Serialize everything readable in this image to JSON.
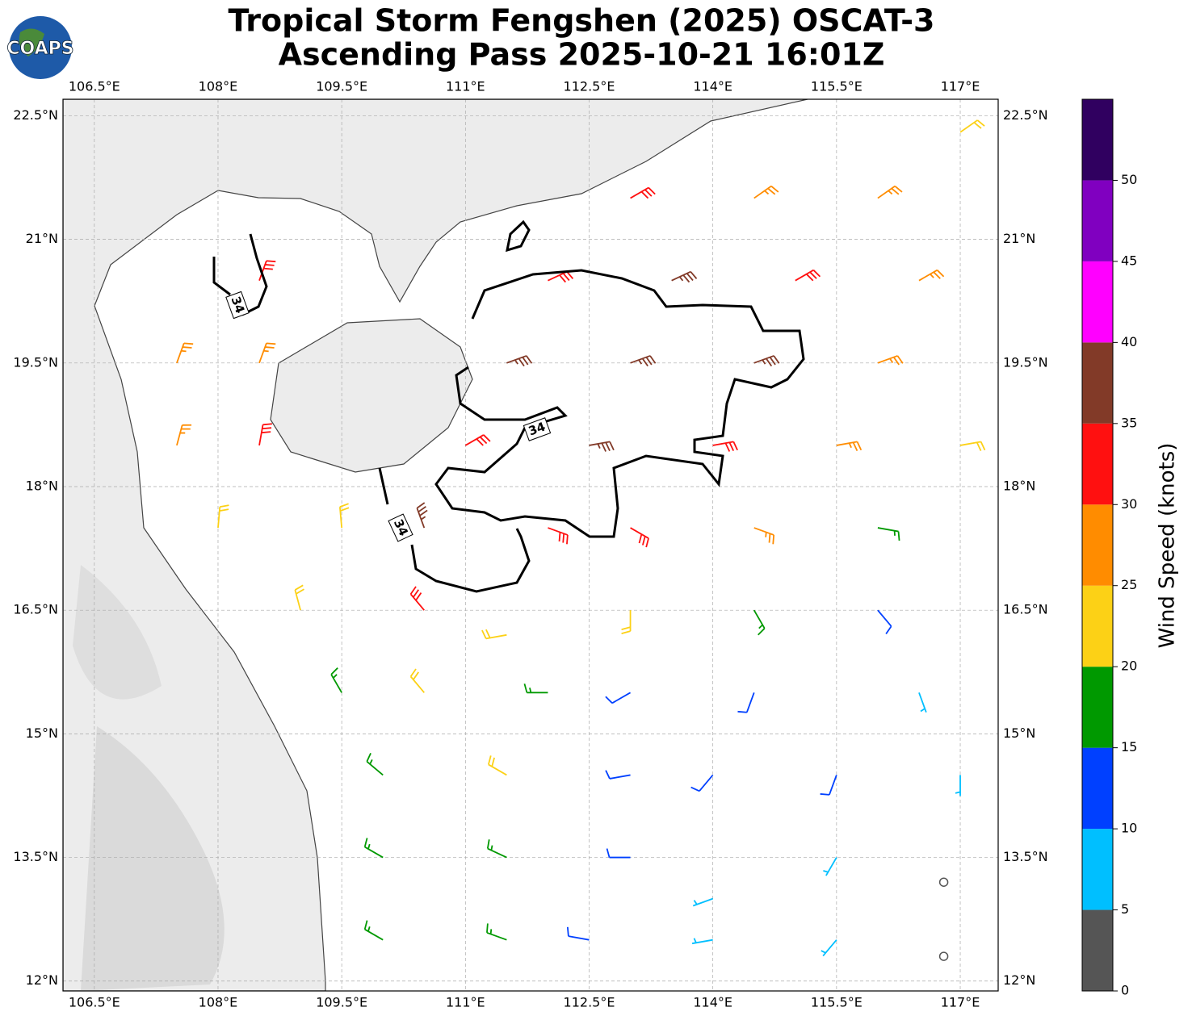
{
  "chart_data": {
    "type": "wind-barb-map",
    "logo": "COAPS",
    "title": "Tropical Storm Fengshen (2025) OSCAT-3",
    "subtitle": "Ascending Pass 2025-10-21 16:01Z",
    "xlim": [
      106.12,
      117.46
    ],
    "ylim": [
      11.88,
      22.7
    ],
    "xticks": [
      {
        "value": 106.5,
        "label": "106.5°E"
      },
      {
        "value": 108,
        "label": "108°E"
      },
      {
        "value": 109.5,
        "label": "109.5°E"
      },
      {
        "value": 111,
        "label": "111°E"
      },
      {
        "value": 112.5,
        "label": "112.5°E"
      },
      {
        "value": 114,
        "label": "114°E"
      },
      {
        "value": 115.5,
        "label": "115.5°E"
      },
      {
        "value": 117,
        "label": "117°E"
      }
    ],
    "yticks": [
      {
        "value": 12,
        "label": "12°N"
      },
      {
        "value": 13.5,
        "label": "13.5°N"
      },
      {
        "value": 15,
        "label": "15°N"
      },
      {
        "value": 16.5,
        "label": "16.5°N"
      },
      {
        "value": 18,
        "label": "18°N"
      },
      {
        "value": 19.5,
        "label": "19.5°N"
      },
      {
        "value": 21,
        "label": "21°N"
      },
      {
        "value": 22.5,
        "label": "22.5°N"
      }
    ],
    "grid": true,
    "contour_label": "34",
    "colorbar": {
      "label": "Wind Speed (knots)",
      "bounds": [
        0,
        5,
        10,
        15,
        20,
        25,
        30,
        35,
        40,
        45,
        50,
        55
      ],
      "colors": [
        "#555555",
        "#00bfff",
        "#0040ff",
        "#009900",
        "#fcd116",
        "#ff8c00",
        "#ff1010",
        "#823a28",
        "#ff00ff",
        "#8000c0",
        "#300060"
      ],
      "ticks": [
        0,
        5,
        10,
        15,
        20,
        25,
        30,
        35,
        40,
        45,
        50
      ]
    },
    "barbs": [
      {
        "lon": 113,
        "lat": 21.5,
        "speed": 32,
        "dir": 60
      },
      {
        "lon": 114.5,
        "lat": 21.5,
        "speed": 28,
        "dir": 55
      },
      {
        "lon": 116,
        "lat": 21.5,
        "speed": 27,
        "dir": 55
      },
      {
        "lon": 117,
        "lat": 22.3,
        "speed": 24,
        "dir": 55
      },
      {
        "lon": 108.5,
        "lat": 20.5,
        "speed": 33,
        "dir": 20
      },
      {
        "lon": 112,
        "lat": 20.5,
        "speed": 30,
        "dir": 65
      },
      {
        "lon": 113.5,
        "lat": 20.5,
        "speed": 36,
        "dir": 65
      },
      {
        "lon": 115,
        "lat": 20.5,
        "speed": 32,
        "dir": 60
      },
      {
        "lon": 116.5,
        "lat": 20.5,
        "speed": 28,
        "dir": 60
      },
      {
        "lon": 107.5,
        "lat": 19.5,
        "speed": 27,
        "dir": 20
      },
      {
        "lon": 108.5,
        "lat": 19.5,
        "speed": 28,
        "dir": 20
      },
      {
        "lon": 111.5,
        "lat": 19.5,
        "speed": 38,
        "dir": 70
      },
      {
        "lon": 113,
        "lat": 19.5,
        "speed": 38,
        "dir": 70
      },
      {
        "lon": 114.5,
        "lat": 19.5,
        "speed": 37,
        "dir": 70
      },
      {
        "lon": 116,
        "lat": 19.5,
        "speed": 28,
        "dir": 70
      },
      {
        "lon": 107.5,
        "lat": 18.5,
        "speed": 28,
        "dir": 15
      },
      {
        "lon": 108.5,
        "lat": 18.5,
        "speed": 32,
        "dir": 10
      },
      {
        "lon": 111,
        "lat": 18.5,
        "speed": 33,
        "dir": 60
      },
      {
        "lon": 112.5,
        "lat": 18.5,
        "speed": 37,
        "dir": 80
      },
      {
        "lon": 114,
        "lat": 18.5,
        "speed": 34,
        "dir": 80
      },
      {
        "lon": 115.5,
        "lat": 18.5,
        "speed": 25,
        "dir": 80
      },
      {
        "lon": 117,
        "lat": 18.5,
        "speed": 20,
        "dir": 80
      },
      {
        "lon": 108,
        "lat": 17.5,
        "speed": 22,
        "dir": 5
      },
      {
        "lon": 109.5,
        "lat": 17.5,
        "speed": 24,
        "dir": 355
      },
      {
        "lon": 110.5,
        "lat": 17.5,
        "speed": 37,
        "dir": 340
      },
      {
        "lon": 112,
        "lat": 17.5,
        "speed": 32,
        "dir": 110
      },
      {
        "lon": 113,
        "lat": 17.5,
        "speed": 30,
        "dir": 120
      },
      {
        "lon": 114.5,
        "lat": 17.5,
        "speed": 26,
        "dir": 110
      },
      {
        "lon": 116,
        "lat": 17.5,
        "speed": 18,
        "dir": 100
      },
      {
        "lon": 109,
        "lat": 16.5,
        "speed": 22,
        "dir": 345
      },
      {
        "lon": 110.5,
        "lat": 16.5,
        "speed": 32,
        "dir": 320
      },
      {
        "lon": 111.5,
        "lat": 16.2,
        "speed": 21,
        "dir": 260
      },
      {
        "lon": 113,
        "lat": 16.5,
        "speed": 20,
        "dir": 180
      },
      {
        "lon": 114.5,
        "lat": 16.5,
        "speed": 16,
        "dir": 150
      },
      {
        "lon": 116,
        "lat": 16.5,
        "speed": 13,
        "dir": 140
      },
      {
        "lon": 109.5,
        "lat": 15.5,
        "speed": 18,
        "dir": 330
      },
      {
        "lon": 110.5,
        "lat": 15.5,
        "speed": 22,
        "dir": 320
      },
      {
        "lon": 112,
        "lat": 15.5,
        "speed": 18,
        "dir": 270
      },
      {
        "lon": 113,
        "lat": 15.5,
        "speed": 12,
        "dir": 240
      },
      {
        "lon": 114.5,
        "lat": 15.5,
        "speed": 12,
        "dir": 200
      },
      {
        "lon": 116.5,
        "lat": 15.5,
        "speed": 8,
        "dir": 160
      },
      {
        "lon": 110,
        "lat": 14.5,
        "speed": 18,
        "dir": 310
      },
      {
        "lon": 111.5,
        "lat": 14.5,
        "speed": 20,
        "dir": 300
      },
      {
        "lon": 113,
        "lat": 14.5,
        "speed": 12,
        "dir": 260
      },
      {
        "lon": 114,
        "lat": 14.5,
        "speed": 11,
        "dir": 220
      },
      {
        "lon": 115.5,
        "lat": 14.5,
        "speed": 10,
        "dir": 200
      },
      {
        "lon": 117,
        "lat": 14.5,
        "speed": 6,
        "dir": 180
      },
      {
        "lon": 110,
        "lat": 13.5,
        "speed": 17,
        "dir": 300
      },
      {
        "lon": 111.5,
        "lat": 13.5,
        "speed": 18,
        "dir": 295
      },
      {
        "lon": 113,
        "lat": 13.5,
        "speed": 12,
        "dir": 270
      },
      {
        "lon": 114,
        "lat": 13,
        "speed": 8,
        "dir": 250
      },
      {
        "lon": 115.5,
        "lat": 13.5,
        "speed": 9,
        "dir": 210
      },
      {
        "lon": 116.8,
        "lat": 13.2,
        "speed": 3,
        "dir": 200
      },
      {
        "lon": 110,
        "lat": 12.5,
        "speed": 18,
        "dir": 300
      },
      {
        "lon": 111.5,
        "lat": 12.5,
        "speed": 17,
        "dir": 290
      },
      {
        "lon": 112.5,
        "lat": 12.5,
        "speed": 12,
        "dir": 280
      },
      {
        "lon": 114,
        "lat": 12.5,
        "speed": 7,
        "dir": 260
      },
      {
        "lon": 115.5,
        "lat": 12.5,
        "speed": 8,
        "dir": 220
      },
      {
        "lon": 116.8,
        "lat": 12.3,
        "speed": 2,
        "dir": 200
      }
    ]
  }
}
